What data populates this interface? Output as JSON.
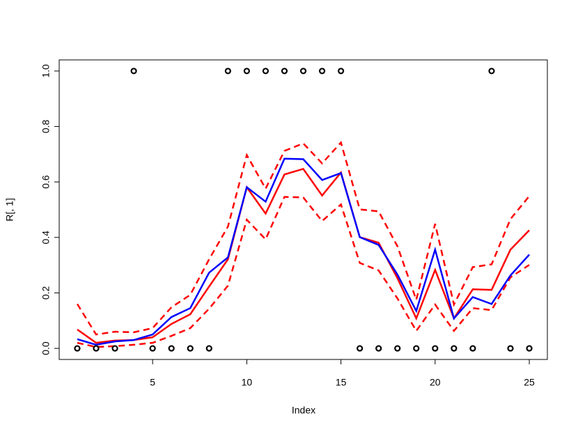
{
  "chart_data": {
    "type": "line",
    "x_label": "Index",
    "y_label": "R[, 1]",
    "x": [
      1,
      2,
      3,
      4,
      5,
      6,
      7,
      8,
      9,
      10,
      11,
      12,
      13,
      14,
      15,
      16,
      17,
      18,
      19,
      20,
      21,
      22,
      23,
      24,
      25
    ],
    "xlim": [
      0.04,
      25.96
    ],
    "ylim": [
      -0.04,
      1.04
    ],
    "xticks": [
      5,
      10,
      15,
      20,
      25
    ],
    "yticks": [
      {
        "value": 0,
        "label": "0.0"
      },
      {
        "value": 0.2,
        "label": "0.2"
      },
      {
        "value": 0.4,
        "label": "0.4"
      },
      {
        "value": 0.6,
        "label": "0.6"
      },
      {
        "value": 0.8,
        "label": "0.8"
      },
      {
        "value": 1,
        "label": "1.0"
      }
    ],
    "points": {
      "color": "#000000",
      "values": [
        0,
        0,
        0,
        1,
        0,
        0,
        0,
        0,
        1,
        1,
        1,
        1,
        1,
        1,
        1,
        0,
        0,
        0,
        0,
        0,
        0,
        0,
        1,
        0,
        0
      ]
    },
    "series": [
      {
        "color": "#ff0000",
        "dashed": true,
        "values": [
          0.16,
          0.05,
          0.06,
          0.058,
          0.073,
          0.148,
          0.193,
          0.321,
          0.439,
          0.697,
          0.576,
          0.712,
          0.739,
          0.667,
          0.742,
          0.501,
          0.494,
          0.368,
          0.175,
          0.449,
          0.158,
          0.293,
          0.303,
          0.466,
          0.549
        ]
      },
      {
        "color": "#ff0000",
        "dashed": true,
        "values": [
          0.02,
          0.005,
          0.008,
          0.013,
          0.02,
          0.045,
          0.073,
          0.143,
          0.226,
          0.464,
          0.393,
          0.546,
          0.544,
          0.459,
          0.519,
          0.308,
          0.281,
          0.18,
          0.063,
          0.158,
          0.063,
          0.145,
          0.138,
          0.256,
          0.301
        ]
      },
      {
        "color": "#ff0000",
        "dashed": false,
        "values": [
          0.068,
          0.02,
          0.028,
          0.03,
          0.04,
          0.088,
          0.123,
          0.223,
          0.321,
          0.581,
          0.486,
          0.627,
          0.647,
          0.551,
          0.634,
          0.401,
          0.381,
          0.253,
          0.108,
          0.283,
          0.108,
          0.213,
          0.211,
          0.356,
          0.426
        ]
      },
      {
        "color": "#0000ff",
        "dashed": false,
        "values": [
          0.033,
          0.013,
          0.025,
          0.03,
          0.05,
          0.113,
          0.145,
          0.273,
          0.328,
          0.581,
          0.529,
          0.684,
          0.682,
          0.607,
          0.632,
          0.401,
          0.373,
          0.266,
          0.135,
          0.356,
          0.108,
          0.185,
          0.16,
          0.263,
          0.338
        ]
      }
    ]
  }
}
